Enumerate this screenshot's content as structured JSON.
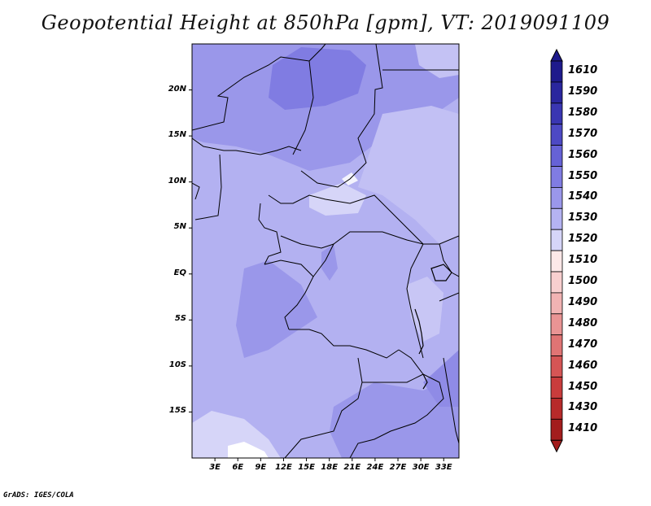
{
  "title": "Geopotential Height at 850hPa [gpm], VT: 2019091109",
  "credit": "GrADS: IGES/COLA",
  "map": {
    "lon_range": [
      0,
      35
    ],
    "lat_range": [
      -20,
      25
    ],
    "lat_ticks": [
      {
        "value": 20,
        "label": "20N"
      },
      {
        "value": 15,
        "label": "15N"
      },
      {
        "value": 10,
        "label": "10N"
      },
      {
        "value": 5,
        "label": "5N"
      },
      {
        "value": 0,
        "label": "EQ"
      },
      {
        "value": -5,
        "label": "5S"
      },
      {
        "value": -10,
        "label": "10S"
      },
      {
        "value": -15,
        "label": "15S"
      }
    ],
    "lon_ticks": [
      {
        "value": 3,
        "label": "3E"
      },
      {
        "value": 6,
        "label": "6E"
      },
      {
        "value": 9,
        "label": "9E"
      },
      {
        "value": 12,
        "label": "12E"
      },
      {
        "value": 15,
        "label": "15E"
      },
      {
        "value": 18,
        "label": "18E"
      },
      {
        "value": 21,
        "label": "21E"
      },
      {
        "value": 24,
        "label": "24E"
      },
      {
        "value": 27,
        "label": "27E"
      },
      {
        "value": 30,
        "label": "30E"
      },
      {
        "value": 33,
        "label": "33E"
      }
    ]
  },
  "colorbar": {
    "levels": [
      {
        "label": "1610",
        "color": "#1e1a8c"
      },
      {
        "label": "1590",
        "color": "#2a269e"
      },
      {
        "label": "1580",
        "color": "#3a36b2"
      },
      {
        "label": "1570",
        "color": "#4d49c4"
      },
      {
        "label": "1560",
        "color": "#6662d6"
      },
      {
        "label": "1550",
        "color": "#807ce2"
      },
      {
        "label": "1540",
        "color": "#9a97ea"
      },
      {
        "label": "1530",
        "color": "#b5b3f2"
      },
      {
        "label": "1520",
        "color": "#d6d5f8"
      },
      {
        "label": "1510",
        "color": "#fde8e8"
      },
      {
        "label": "1500",
        "color": "#f8cfcf"
      },
      {
        "label": "1490",
        "color": "#f1b3b3"
      },
      {
        "label": "1480",
        "color": "#e99494"
      },
      {
        "label": "1470",
        "color": "#e07474"
      },
      {
        "label": "1460",
        "color": "#d55555"
      },
      {
        "label": "1450",
        "color": "#c93c3c"
      },
      {
        "label": "1430",
        "color": "#b72a2a"
      },
      {
        "label": "1410",
        "color": "#a31d1d"
      }
    ]
  }
}
